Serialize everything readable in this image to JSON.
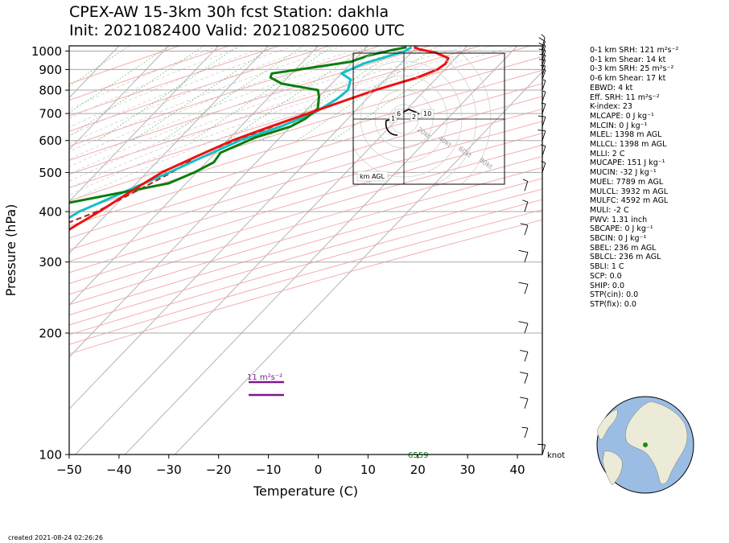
{
  "title": {
    "line1": "CPEX-AW 15-3km  30h fcst  Station: dakhla",
    "line2": "Init: 2021082400  Valid: 202108250600 UTC"
  },
  "chart_data": {
    "type": "skew-t",
    "xlabel": "Temperature (C)",
    "ylabel": "Pressure (hPa)",
    "x_ticks": [
      -50,
      -40,
      -30,
      -20,
      -10,
      0,
      10,
      20,
      30,
      40
    ],
    "y_ticks": [
      100,
      200,
      300,
      400,
      500,
      600,
      700,
      800,
      900,
      1000
    ],
    "xlim": [
      -50,
      45
    ],
    "ylim": [
      1030,
      100
    ],
    "y_scale": "log",
    "grid": true,
    "series": [
      {
        "color": "#ee1111",
        "note": "temperature",
        "points": [
          [
            1022,
            19.5
          ],
          [
            1010,
            21
          ],
          [
            990,
            25
          ],
          [
            960,
            28.5
          ],
          [
            930,
            29
          ],
          [
            900,
            28.5
          ],
          [
            860,
            26
          ],
          [
            800,
            20
          ],
          [
            760,
            16.5
          ],
          [
            700,
            11
          ],
          [
            650,
            6
          ],
          [
            600,
            1
          ],
          [
            550,
            -3
          ],
          [
            500,
            -7
          ],
          [
            450,
            -9.5
          ],
          [
            400,
            -12
          ],
          [
            370,
            -14
          ],
          [
            340,
            -16
          ],
          [
            320,
            -18.5
          ],
          [
            300,
            -22
          ],
          [
            250,
            -30
          ],
          [
            200,
            -37
          ],
          [
            170,
            -43
          ],
          [
            150,
            -47
          ],
          [
            130,
            -50
          ],
          [
            110,
            -52
          ],
          [
            100,
            -53
          ]
        ]
      },
      {
        "color": "#14bfc6",
        "note": "virtual temperature",
        "points": [
          [
            1022,
            19
          ],
          [
            1000,
            18.5
          ],
          [
            970,
            16
          ],
          [
            930,
            12.5
          ],
          [
            880,
            10
          ],
          [
            850,
            13
          ],
          [
            800,
            14.5
          ],
          [
            760,
            14
          ],
          [
            700,
            12
          ],
          [
            650,
            8
          ],
          [
            600,
            2.5
          ],
          [
            550,
            -1.5
          ],
          [
            500,
            -5.5
          ],
          [
            450,
            -10.5
          ],
          [
            400,
            -16
          ],
          [
            370,
            -18
          ],
          [
            340,
            -18.5
          ],
          [
            300,
            -21.5
          ],
          [
            250,
            -29
          ],
          [
            200,
            -37
          ],
          [
            170,
            -43
          ],
          [
            150,
            -47
          ],
          [
            130,
            -50
          ],
          [
            110,
            -52
          ],
          [
            100,
            -53
          ]
        ]
      },
      {
        "color": "#0c7d0c",
        "note": "dewpoint",
        "points": [
          [
            1022,
            18
          ],
          [
            1005,
            15.5
          ],
          [
            975,
            12
          ],
          [
            940,
            9.5
          ],
          [
            910,
            3
          ],
          [
            880,
            -4
          ],
          [
            860,
            -3.5
          ],
          [
            830,
            0
          ],
          [
            800,
            8.5
          ],
          [
            770,
            10
          ],
          [
            720,
            12
          ],
          [
            680,
            11.5
          ],
          [
            650,
            10
          ],
          [
            610,
            5
          ],
          [
            560,
            1
          ],
          [
            530,
            1.5
          ],
          [
            500,
            -0.5
          ],
          [
            470,
            -3.5
          ],
          [
            420,
            -20
          ],
          [
            390,
            -39
          ],
          [
            350,
            -35
          ],
          [
            320,
            -37
          ],
          [
            290,
            -35
          ],
          [
            260,
            -37
          ],
          [
            200,
            -37
          ],
          [
            180,
            -35
          ],
          [
            160,
            -36
          ],
          [
            140,
            -39
          ],
          [
            120,
            -42
          ],
          [
            100,
            -41
          ]
        ]
      },
      {
        "color": "#a02828",
        "note": "parcel",
        "points": [
          [
            700,
            10.5
          ],
          [
            650,
            6.5
          ],
          [
            600,
            1.5
          ],
          [
            550,
            -3
          ],
          [
            500,
            -5
          ],
          [
            450,
            -8.5
          ],
          [
            400,
            -12.5
          ],
          [
            350,
            -20
          ],
          [
            300,
            -27
          ],
          [
            250,
            -34
          ],
          [
            200,
            -40
          ],
          [
            150,
            -50
          ],
          [
            100,
            -60
          ]
        ]
      }
    ],
    "annotations": {
      "srh_label": "11 m²s⁻²",
      "lcl_label": "6559",
      "wind_unit": "knot",
      "hodograph_label": "km AGL",
      "hodograph_ring_labels": [
        "20kt",
        "40kt",
        "60kt",
        "80kt"
      ],
      "hodograph_height_labels": [
        "1",
        "2",
        "6",
        "10"
      ]
    }
  },
  "params": [
    "0-1 km SRH: 121 m²s⁻²",
    "0-1 km Shear: 14 kt",
    "0-3 km SRH: 25 m²s⁻²",
    "0-6 km Shear: 17 kt",
    "EBWD: 4 kt",
    "Eff. SRH: 11 m²s⁻²",
    "K-index: 23",
    "MLCAPE: 0 J kg⁻¹",
    "MLCIN: 0 J kg⁻¹",
    "MLEL: 1398 m AGL",
    "MLLCL: 1398 m AGL",
    "MLLI: 2 C",
    "MUCAPE: 151 J kg⁻¹",
    "MUCIN: -32 J kg⁻¹",
    "MUEL: 7789 m AGL",
    "MULCL: 3932 m AGL",
    "MULFC: 4592 m AGL",
    "MULI: -2 C",
    "PWV: 1.31 inch",
    "SBCAPE: 0 J kg⁻¹",
    "SBCIN: 0 J kg⁻¹",
    "SBEL: 236 m AGL",
    "SBLCL: 236 m AGL",
    "SBLI: 1 C",
    "SCP: 0.0",
    "SHIP: 0.0",
    "STP(cin): 0.0",
    "STP(fix): 0.0"
  ],
  "footer": {
    "created": "created 2021-08-24 02:26:26"
  },
  "colors": {
    "temperature": "#ee1111",
    "virtual": "#14bfc6",
    "dewpoint": "#0c7d0c",
    "parcel": "#a02828",
    "srh": "#7a1a8a",
    "globe_ocean": "#9cbde3",
    "globe_land": "#ecebd7",
    "globe_marker": "#1a8a1a"
  }
}
